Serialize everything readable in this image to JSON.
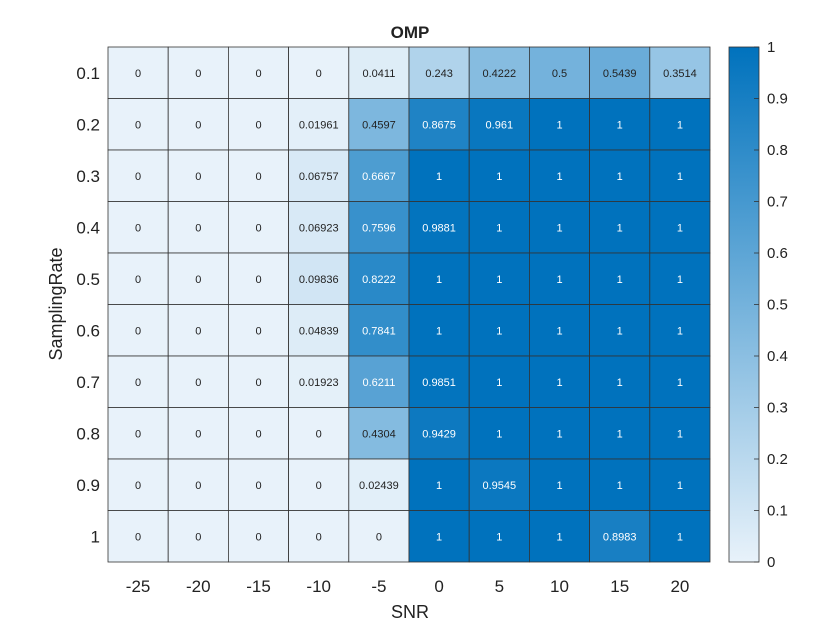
{
  "chart_data": {
    "type": "heatmap",
    "title": "OMP",
    "xlabel": "SNR",
    "ylabel": "SamplingRate",
    "x_labels": [
      "-25",
      "-20",
      "-15",
      "-10",
      "-5",
      "0",
      "5",
      "10",
      "15",
      "20"
    ],
    "y_labels": [
      "0.1",
      "0.2",
      "0.3",
      "0.4",
      "0.5",
      "0.6",
      "0.7",
      "0.8",
      "0.9",
      "1"
    ],
    "values": [
      [
        "0",
        "0",
        "0",
        "0",
        "0.0411",
        "0.243",
        "0.4222",
        "0.5",
        "0.5439",
        "0.3514"
      ],
      [
        "0",
        "0",
        "0",
        "0.01961",
        "0.4597",
        "0.8675",
        "0.961",
        "1",
        "1",
        "1"
      ],
      [
        "0",
        "0",
        "0",
        "0.06757",
        "0.6667",
        "1",
        "1",
        "1",
        "1",
        "1"
      ],
      [
        "0",
        "0",
        "0",
        "0.06923",
        "0.7596",
        "0.9881",
        "1",
        "1",
        "1",
        "1"
      ],
      [
        "0",
        "0",
        "0",
        "0.09836",
        "0.8222",
        "1",
        "1",
        "1",
        "1",
        "1"
      ],
      [
        "0",
        "0",
        "0",
        "0.04839",
        "0.7841",
        "1",
        "1",
        "1",
        "1",
        "1"
      ],
      [
        "0",
        "0",
        "0",
        "0.01923",
        "0.6211",
        "0.9851",
        "1",
        "1",
        "1",
        "1"
      ],
      [
        "0",
        "0",
        "0",
        "0",
        "0.4304",
        "0.9429",
        "1",
        "1",
        "1",
        "1"
      ],
      [
        "0",
        "0",
        "0",
        "0",
        "0.02439",
        "1",
        "0.9545",
        "1",
        "1",
        "1"
      ],
      [
        "0",
        "0",
        "0",
        "0",
        "0",
        "1",
        "1",
        "1",
        "0.8983",
        "1"
      ]
    ],
    "colorbar": {
      "range": [
        0,
        1
      ],
      "ticks": [
        "0",
        "0.1",
        "0.2",
        "0.3",
        "0.4",
        "0.5",
        "0.6",
        "0.7",
        "0.8",
        "0.9",
        "1"
      ],
      "color_low": "#e8f2fa",
      "color_high": "#0072bd"
    },
    "grid": true,
    "legend": "none"
  }
}
